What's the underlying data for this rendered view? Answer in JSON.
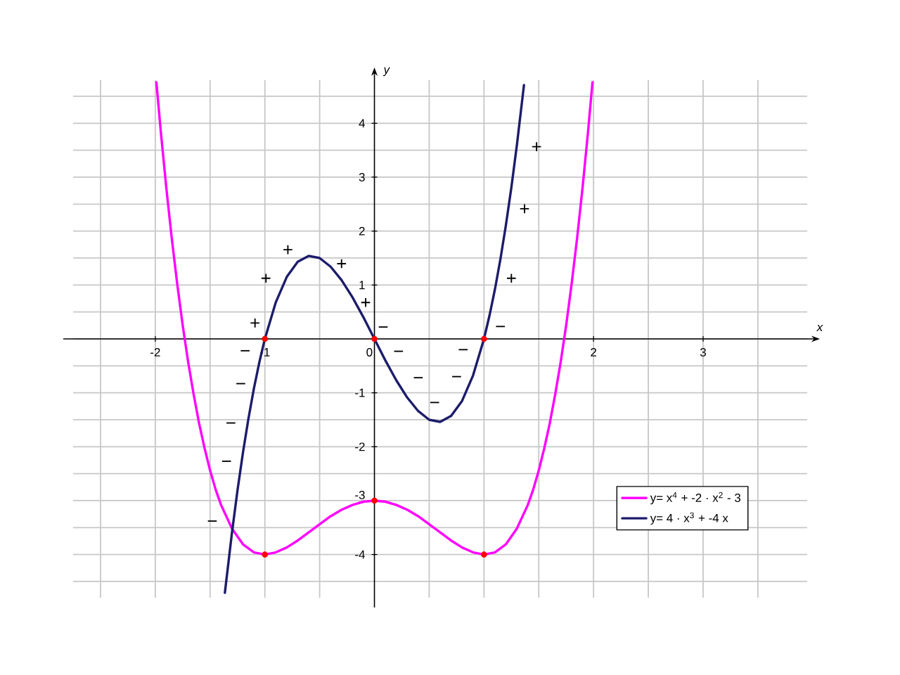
{
  "chart_data": {
    "type": "line",
    "xlabel": "x",
    "ylabel": "y",
    "xlim": [
      -2.75,
      3.95
    ],
    "ylim": [
      -4.8,
      4.8
    ],
    "xticks": [
      -2,
      -1,
      0,
      {
        "value": 1,
        "label": null
      },
      2,
      3
    ],
    "yticks": [
      -4,
      -3,
      -2,
      -1,
      1,
      2,
      3,
      4
    ],
    "grid": true,
    "legend": "bottom right",
    "series": [
      {
        "name": "y= x$^{4}$ + -2 · x$^{2}$ - 3",
        "color": "#ff00ff",
        "x": [
          -1.99,
          -1.95,
          -1.9,
          -1.85,
          -1.8,
          -1.75,
          -1.7,
          -1.65,
          -1.6,
          -1.55,
          -1.5,
          -1.45,
          -1.4,
          -1.3,
          -1.2,
          -1.1,
          -1.0,
          -0.9,
          -0.8,
          -0.7,
          -0.6,
          -0.5,
          -0.4,
          -0.3,
          -0.2,
          -0.1,
          0,
          0.1,
          0.2,
          0.3,
          0.4,
          0.5,
          0.6,
          0.7,
          0.8,
          0.9,
          1.0,
          1.1,
          1.2,
          1.3,
          1.4,
          1.45,
          1.5,
          1.55,
          1.6,
          1.65,
          1.7,
          1.75,
          1.8,
          1.85,
          1.9,
          1.95,
          1.99
        ],
        "values": [
          4.76,
          3.85,
          2.81,
          1.87,
          1.02,
          0.25,
          -0.43,
          -1.03,
          -1.57,
          -2.03,
          -2.44,
          -2.79,
          -3.08,
          -3.52,
          -3.81,
          -3.96,
          -4,
          -3.96,
          -3.87,
          -3.74,
          -3.59,
          -3.44,
          -3.29,
          -3.17,
          -3.08,
          -3.02,
          -3,
          -3.02,
          -3.08,
          -3.17,
          -3.29,
          -3.44,
          -3.59,
          -3.74,
          -3.87,
          -3.96,
          -4,
          -3.96,
          -3.81,
          -3.52,
          -3.08,
          -2.79,
          -2.44,
          -2.03,
          -1.57,
          -1.03,
          -0.43,
          0.25,
          1.02,
          1.87,
          2.81,
          3.85,
          4.76
        ]
      },
      {
        "name": "y= 4 · x$^{3}$ + -4 x",
        "color": "#1c1c6b",
        "x": [
          -1.365,
          -1.3,
          -1.25,
          -1.2,
          -1.15,
          -1.1,
          -1.05,
          -1.0,
          -0.9,
          -0.8,
          -0.7,
          -0.6,
          -0.5,
          -0.4,
          -0.3,
          -0.2,
          -0.1,
          0,
          0.1,
          0.2,
          0.3,
          0.4,
          0.5,
          0.6,
          0.7,
          0.8,
          0.9,
          1.0,
          1.05,
          1.1,
          1.15,
          1.2,
          1.25,
          1.3,
          1.365
        ],
        "values": [
          -4.71,
          -3.59,
          -2.81,
          -2.11,
          -1.48,
          -0.92,
          -0.43,
          0,
          0.68,
          1.15,
          1.43,
          1.54,
          1.5,
          1.34,
          1.09,
          0.77,
          0.4,
          0,
          -0.4,
          -0.77,
          -1.09,
          -1.34,
          -1.5,
          -1.54,
          -1.43,
          -1.15,
          -0.68,
          0,
          0.43,
          0.92,
          1.48,
          2.11,
          2.81,
          3.59,
          4.71
        ]
      },
      {
        "color": "#ff0000",
        "type": "scatter",
        "marker": "circle",
        "x": [
          -1,
          0,
          1,
          -1,
          0,
          1
        ],
        "values": [
          0,
          0,
          0,
          -4,
          -3,
          -4
        ]
      }
    ],
    "annotations": [
      "+",
      "+",
      "+",
      "+",
      "+",
      "+",
      "+",
      "+",
      "−",
      "−",
      "−",
      "−",
      "−",
      "−",
      "−",
      "−",
      "−",
      "−",
      "−",
      "−"
    ]
  }
}
